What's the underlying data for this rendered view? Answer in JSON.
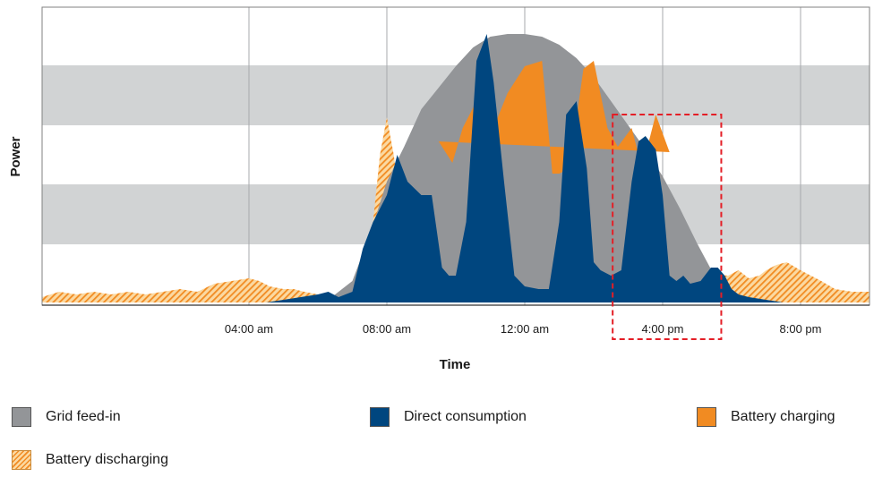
{
  "chart_data": {
    "type": "area",
    "xlabel": "Time",
    "ylabel": "Power",
    "x_ticks": [
      "04:00 am",
      "08:00 am",
      "12:00 am",
      "4:00 pm",
      "8:00 pm"
    ],
    "x_tick_hours": [
      4,
      8,
      12,
      16,
      20
    ],
    "xlim_hours": [
      -2,
      22
    ],
    "ylim": [
      0,
      1
    ],
    "grid": "horizontal bands and vertical lines",
    "highlight": {
      "x_from_hours": 14.55,
      "x_to_hours": 17.7,
      "style": "red dashed box"
    },
    "series": [
      {
        "name": "Grid feed-in",
        "color": "#939598",
        "x": [
          5.9,
          6.4,
          7,
          7.5,
          8,
          8.5,
          9,
          9.5,
          10,
          10.5,
          11,
          11.5,
          12,
          12.5,
          13,
          13.5,
          14,
          14.5,
          15,
          15.5,
          16,
          16.5,
          17,
          17.5,
          18,
          18.3
        ],
        "values": [
          0,
          0.02,
          0.08,
          0.25,
          0.45,
          0.58,
          0.72,
          0.8,
          0.88,
          0.95,
          0.99,
          1.0,
          1.0,
          0.99,
          0.96,
          0.91,
          0.84,
          0.75,
          0.66,
          0.57,
          0.47,
          0.35,
          0.22,
          0.1,
          0.02,
          0
        ]
      },
      {
        "name": "Battery charging",
        "color": "#f18b22",
        "x": [
          9.5,
          9.9,
          10.2,
          10.6,
          11,
          11.5,
          12,
          12.5,
          12.8,
          13,
          13.3,
          13.7,
          14,
          14.4,
          14.7,
          15.1,
          15.4,
          15.8,
          16.2
        ],
        "values": [
          0.6,
          0.52,
          0.65,
          0.75,
          0.62,
          0.78,
          0.88,
          0.9,
          0.48,
          0.48,
          0.5,
          0.87,
          0.9,
          0.65,
          0.58,
          0.65,
          0.5,
          0.7,
          0.56
        ]
      },
      {
        "name": "Direct consumption",
        "color": "#00467f",
        "x": [
          4.5,
          5,
          5.5,
          6,
          6.3,
          6.6,
          7,
          7.3,
          7.6,
          8,
          8.3,
          8.6,
          9,
          9.3,
          9.6,
          9.8,
          10,
          10.3,
          10.6,
          10.9,
          11.1,
          11.4,
          11.7,
          12,
          12.4,
          12.7,
          13,
          13.2,
          13.5,
          13.8,
          14,
          14.2,
          14.5,
          14.8,
          15.1,
          15.3,
          15.5,
          15.8,
          16,
          16.2,
          16.4,
          16.6,
          16.8,
          17.1,
          17.4,
          17.6,
          17.8,
          18,
          18.2,
          18.5,
          19,
          19.5,
          20
        ],
        "values": [
          0,
          0.01,
          0.02,
          0.03,
          0.04,
          0.02,
          0.04,
          0.2,
          0.3,
          0.4,
          0.55,
          0.45,
          0.4,
          0.4,
          0.13,
          0.1,
          0.1,
          0.3,
          0.9,
          1.0,
          0.82,
          0.45,
          0.1,
          0.06,
          0.05,
          0.05,
          0.3,
          0.7,
          0.75,
          0.5,
          0.15,
          0.12,
          0.1,
          0.12,
          0.45,
          0.6,
          0.62,
          0.57,
          0.4,
          0.1,
          0.08,
          0.1,
          0.07,
          0.08,
          0.13,
          0.13,
          0.1,
          0.05,
          0.03,
          0.02,
          0.01,
          0,
          0
        ]
      },
      {
        "name": "Battery discharging",
        "color": "#f18b22",
        "pattern": "hatched",
        "x": [
          -2,
          -1.5,
          -1,
          -0.5,
          0,
          0.5,
          1,
          1.5,
          2,
          2.5,
          3,
          3.5,
          4,
          4.3,
          4.6,
          5,
          5.3,
          5.6,
          6,
          6.3,
          6.6,
          7,
          7.3,
          7.6,
          7.8,
          8,
          8.2,
          8.4,
          8.7,
          9,
          17.9,
          18.2,
          18.5,
          18.8,
          19,
          19.3,
          19.6,
          20,
          20.3,
          20.6,
          21,
          21.5,
          22
        ],
        "values": [
          0.02,
          0.04,
          0.03,
          0.04,
          0.03,
          0.04,
          0.03,
          0.04,
          0.05,
          0.04,
          0.07,
          0.08,
          0.09,
          0.08,
          0.06,
          0.05,
          0.05,
          0.04,
          0.03,
          0.02,
          0.03,
          0.06,
          0.12,
          0.3,
          0.55,
          0.69,
          0.55,
          0.35,
          0.25,
          0.2,
          0.1,
          0.12,
          0.09,
          0.1,
          0.12,
          0.14,
          0.15,
          0.12,
          0.1,
          0.08,
          0.05,
          0.04,
          0.04
        ]
      }
    ]
  },
  "legend": {
    "grid_feed_in": "Grid feed-in",
    "direct_consumption": "Direct consumption",
    "battery_charging": "Battery charging",
    "battery_discharging": "Battery discharging"
  }
}
